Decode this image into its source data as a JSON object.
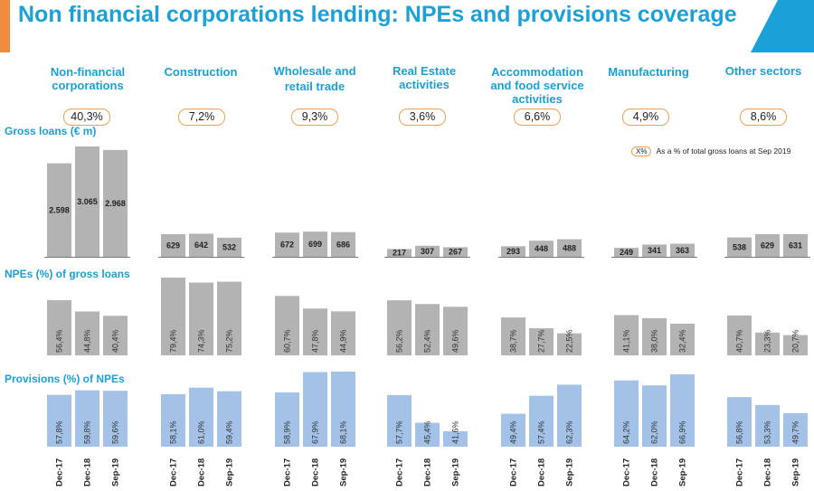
{
  "title": "Non financial corporations lending: NPEs and provisions coverage",
  "sections": {
    "gross_loans": "Gross loans (€ m)",
    "npes": "NPEs (%) of gross loans",
    "provisions": "Provisions (%) of NPEs"
  },
  "legend": {
    "badge": "X%",
    "text": "As a % of total gross loans at Sep 2019"
  },
  "colors": {
    "title": "#1ba0d8",
    "accent": "#f28c3c",
    "gray_bar": "#b3b3b3",
    "blue_bar": "#a4c2e8",
    "badge_border": "#f0a050"
  },
  "chart_data": [
    {
      "type": "bar",
      "title": "Gross loans (€ m)",
      "categories": [
        "Dec-17",
        "Dec-18",
        "Sep-19"
      ],
      "groups": [
        "Non-financial corporations",
        "Construction",
        "Wholesale and retail trade",
        "Real Estate activities",
        "Accommodation and food service activities",
        "Manufacturing",
        "Other sectors"
      ],
      "series": [
        {
          "name": "Non-financial corporations",
          "values": [
            2598,
            3065,
            2968
          ],
          "labels": [
            "2.598",
            "3.065",
            "2.968"
          ]
        },
        {
          "name": "Construction",
          "values": [
            629,
            642,
            532
          ],
          "labels": [
            "629",
            "642",
            "532"
          ]
        },
        {
          "name": "Wholesale and retail trade",
          "values": [
            672,
            699,
            686
          ],
          "labels": [
            "672",
            "699",
            "686"
          ]
        },
        {
          "name": "Real Estate activities",
          "values": [
            217,
            307,
            267
          ],
          "labels": [
            "217",
            "307",
            "267"
          ]
        },
        {
          "name": "Accommodation and food service activities",
          "values": [
            293,
            448,
            488
          ],
          "labels": [
            "293",
            "448",
            "488"
          ]
        },
        {
          "name": "Manufacturing",
          "values": [
            249,
            341,
            363
          ],
          "labels": [
            "249",
            "341",
            "363"
          ]
        },
        {
          "name": "Other sectors",
          "values": [
            538,
            629,
            631
          ],
          "labels": [
            "538",
            "629",
            "631"
          ]
        }
      ],
      "ylim": [
        0,
        3065
      ]
    },
    {
      "type": "bar",
      "title": "NPEs (%) of gross loans",
      "categories": [
        "Dec-17",
        "Dec-18",
        "Sep-19"
      ],
      "series": [
        {
          "name": "Non-financial corporations",
          "values": [
            56.4,
            44.8,
            40.4
          ],
          "labels": [
            "56,4%",
            "44,8%",
            "40,4%"
          ]
        },
        {
          "name": "Construction",
          "values": [
            79.4,
            74.3,
            75.2
          ],
          "labels": [
            "79,4%",
            "74,3%",
            "75,2%"
          ]
        },
        {
          "name": "Wholesale and retail trade",
          "values": [
            60.7,
            47.8,
            44.9
          ],
          "labels": [
            "60,7%",
            "47,8%",
            "44,9%"
          ]
        },
        {
          "name": "Real Estate activities",
          "values": [
            56.2,
            52.4,
            49.6
          ],
          "labels": [
            "56,2%",
            "52,4%",
            "49,6%"
          ]
        },
        {
          "name": "Accommodation and food service activities",
          "values": [
            38.7,
            27.7,
            22.5
          ],
          "labels": [
            "38,7%",
            "27,7%",
            "22,5%"
          ]
        },
        {
          "name": "Manufacturing",
          "values": [
            41.1,
            38.0,
            32.4
          ],
          "labels": [
            "41,1%",
            "38,0%",
            "32,4%"
          ]
        },
        {
          "name": "Other sectors",
          "values": [
            40.7,
            23.3,
            20.7
          ],
          "labels": [
            "40,7%",
            "23,3%",
            "20,7%"
          ]
        }
      ],
      "ylim": [
        0,
        79.4
      ]
    },
    {
      "type": "bar",
      "title": "Provisions (%) of NPEs",
      "categories": [
        "Dec-17",
        "Dec-18",
        "Sep-19"
      ],
      "series": [
        {
          "name": "Non-financial corporations",
          "values": [
            57.8,
            59.8,
            59.6
          ],
          "labels": [
            "57,8%",
            "59,8%",
            "59,6%"
          ]
        },
        {
          "name": "Construction",
          "values": [
            58.1,
            61.0,
            59.4
          ],
          "labels": [
            "58,1%",
            "61,0%",
            "59,4%"
          ]
        },
        {
          "name": "Wholesale and retail trade",
          "values": [
            58.9,
            67.9,
            68.1
          ],
          "labels": [
            "58,9%",
            "67,9%",
            "68,1%"
          ]
        },
        {
          "name": "Real Estate activities",
          "values": [
            57.7,
            45.4,
            41.6
          ],
          "labels": [
            "57,7%",
            "45,4%",
            "41,6%"
          ]
        },
        {
          "name": "Accommodation and food service activities",
          "values": [
            49.4,
            57.4,
            62.3
          ],
          "labels": [
            "49,4%",
            "57,4%",
            "62,3%"
          ]
        },
        {
          "name": "Manufacturing",
          "values": [
            64.2,
            62.0,
            66.9
          ],
          "labels": [
            "64,2%",
            "62,0%",
            "66,9%"
          ]
        },
        {
          "name": "Other sectors",
          "values": [
            56.8,
            53.3,
            49.7
          ],
          "labels": [
            "56,8%",
            "53,3%",
            "49,7%"
          ]
        }
      ],
      "ylim": [
        40,
        68.1
      ]
    }
  ],
  "sectors": [
    {
      "name": "Non-financial\ncorporations",
      "share": "40,3%"
    },
    {
      "name": "Construction",
      "share": "7,2%"
    },
    {
      "name": "Wholesale and\nretail trade",
      "share": "9,3%"
    },
    {
      "name": "Real Estate\nactivities",
      "share": "3,6%"
    },
    {
      "name": "Accommodation\nand food service\nactivities",
      "share": "6,6%"
    },
    {
      "name": "Manufacturing",
      "share": "4,9%"
    },
    {
      "name": "Other sectors",
      "share": "8,6%"
    }
  ]
}
